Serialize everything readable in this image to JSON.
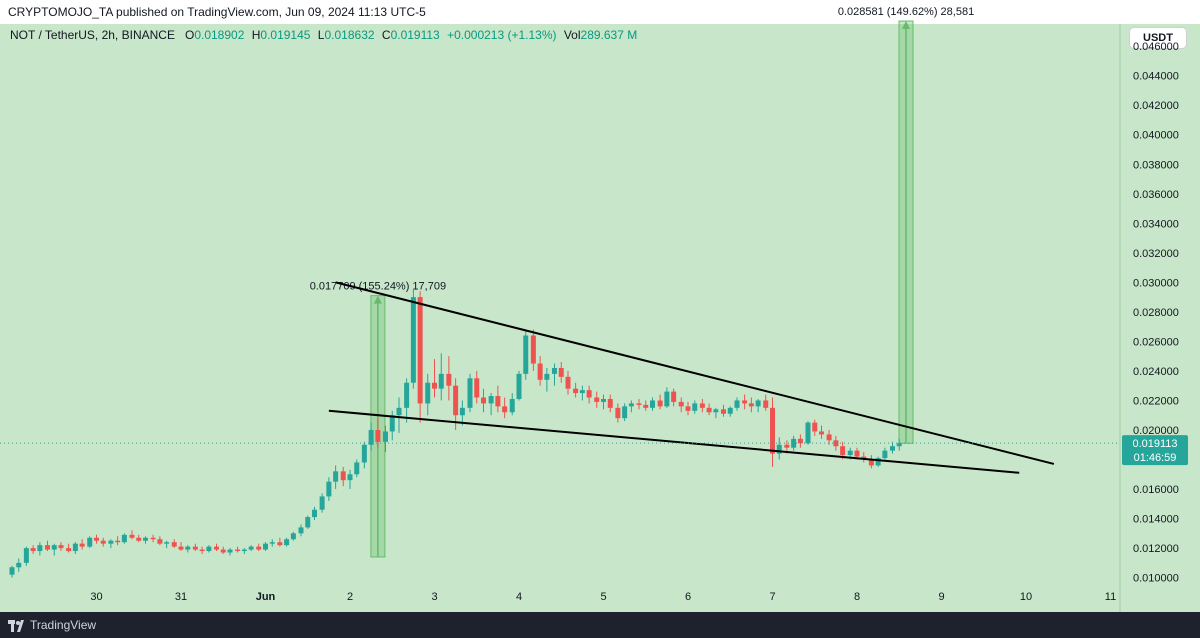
{
  "header": {
    "published": "CRYPTOMOJO_TA published on TradingView.com, Jun 09, 2024 11:13 UTC-5"
  },
  "legend": {
    "symbol": "NOT / TetherUS, 2h, BINANCE",
    "o_label": "O",
    "o": "0.018902",
    "h_label": "H",
    "h": "0.019145",
    "l_label": "L",
    "l": "0.018632",
    "c_label": "C",
    "c": "0.019113",
    "change": "+0.000213 (+1.13%)",
    "vol_label": "Vol",
    "vol": "289.637 M"
  },
  "currency_button": "USDT",
  "footer": {
    "brand": "TradingView"
  },
  "colors": {
    "background": "#c8e6c9",
    "up": "#26a69a",
    "down": "#ef5350",
    "measure": "#66bb6a",
    "trendline": "#000000",
    "last_price": "#26a69a"
  },
  "chart_data": {
    "type": "candlestick",
    "ylim": [
      0.0095,
      0.0475
    ],
    "y_ticks": [
      "0.046000",
      "0.044000",
      "0.042000",
      "0.040000",
      "0.038000",
      "0.036000",
      "0.034000",
      "0.032000",
      "0.030000",
      "0.028000",
      "0.026000",
      "0.024000",
      "0.022000",
      "0.020000",
      "0.018000",
      "0.016000",
      "0.014000",
      "0.012000",
      "0.010000"
    ],
    "x_ticks": [
      "30",
      "31",
      "Jun",
      "2",
      "3",
      "4",
      "5",
      "6",
      "7",
      "8",
      "9",
      "10",
      "11"
    ],
    "last_price": {
      "value": "0.019113",
      "countdown": "01:46:59"
    },
    "candles": [
      [
        29.0,
        0.0102,
        0.0108,
        0.01,
        0.0107
      ],
      [
        29.08,
        0.0107,
        0.0113,
        0.0104,
        0.011
      ],
      [
        29.17,
        0.011,
        0.0121,
        0.0108,
        0.012
      ],
      [
        29.25,
        0.012,
        0.0122,
        0.0116,
        0.0118
      ],
      [
        29.33,
        0.0118,
        0.0124,
        0.0115,
        0.0122
      ],
      [
        29.42,
        0.0122,
        0.0125,
        0.0118,
        0.0119
      ],
      [
        29.5,
        0.0119,
        0.0123,
        0.0115,
        0.0122
      ],
      [
        29.58,
        0.0122,
        0.0124,
        0.0118,
        0.012
      ],
      [
        29.67,
        0.012,
        0.0123,
        0.0117,
        0.0118
      ],
      [
        29.75,
        0.0118,
        0.0124,
        0.0116,
        0.0123
      ],
      [
        29.83,
        0.0123,
        0.0126,
        0.0119,
        0.0121
      ],
      [
        29.92,
        0.0121,
        0.0128,
        0.012,
        0.0127
      ],
      [
        30.0,
        0.0127,
        0.0129,
        0.0123,
        0.0125
      ],
      [
        30.08,
        0.0125,
        0.0127,
        0.0121,
        0.0123
      ],
      [
        30.17,
        0.0123,
        0.0126,
        0.012,
        0.0125
      ],
      [
        30.25,
        0.0125,
        0.0128,
        0.0122,
        0.0124
      ],
      [
        30.33,
        0.0124,
        0.013,
        0.0123,
        0.0129
      ],
      [
        30.42,
        0.0129,
        0.0132,
        0.0126,
        0.0127
      ],
      [
        30.5,
        0.0127,
        0.0129,
        0.0124,
        0.0125
      ],
      [
        30.58,
        0.0125,
        0.0128,
        0.0123,
        0.0127
      ],
      [
        30.67,
        0.0127,
        0.0129,
        0.0124,
        0.0126
      ],
      [
        30.75,
        0.0126,
        0.0128,
        0.0122,
        0.0123
      ],
      [
        30.83,
        0.0123,
        0.0125,
        0.012,
        0.0124
      ],
      [
        30.92,
        0.0124,
        0.0126,
        0.012,
        0.0121
      ],
      [
        31.0,
        0.0121,
        0.0124,
        0.0118,
        0.0119
      ],
      [
        31.08,
        0.0119,
        0.0122,
        0.0117,
        0.0121
      ],
      [
        31.17,
        0.0121,
        0.0123,
        0.0118,
        0.0119
      ],
      [
        31.25,
        0.0119,
        0.0121,
        0.0116,
        0.0118
      ],
      [
        31.33,
        0.0118,
        0.0122,
        0.0117,
        0.0121
      ],
      [
        31.42,
        0.0121,
        0.0123,
        0.0118,
        0.0119
      ],
      [
        31.5,
        0.0119,
        0.0121,
        0.0116,
        0.0117
      ],
      [
        31.58,
        0.0117,
        0.012,
        0.0115,
        0.0119
      ],
      [
        31.67,
        0.0119,
        0.0121,
        0.0117,
        0.0118
      ],
      [
        31.75,
        0.0118,
        0.012,
        0.0116,
        0.0119
      ],
      [
        31.83,
        0.0119,
        0.0122,
        0.0118,
        0.0121
      ],
      [
        31.92,
        0.0121,
        0.0123,
        0.0118,
        0.0119
      ],
      [
        32.0,
        0.0119,
        0.0124,
        0.0118,
        0.0123
      ],
      [
        32.08,
        0.0123,
        0.0126,
        0.0121,
        0.0124
      ],
      [
        32.17,
        0.0124,
        0.0127,
        0.0121,
        0.0122
      ],
      [
        32.25,
        0.0122,
        0.0127,
        0.0121,
        0.0126
      ],
      [
        32.33,
        0.0126,
        0.0131,
        0.0125,
        0.013
      ],
      [
        32.42,
        0.013,
        0.0136,
        0.0128,
        0.0134
      ],
      [
        32.5,
        0.0134,
        0.0142,
        0.0133,
        0.0141
      ],
      [
        32.58,
        0.0141,
        0.0148,
        0.0139,
        0.0146
      ],
      [
        32.67,
        0.0146,
        0.0157,
        0.0144,
        0.0155
      ],
      [
        32.75,
        0.0155,
        0.0168,
        0.0152,
        0.0165
      ],
      [
        32.83,
        0.0165,
        0.0176,
        0.016,
        0.0172
      ],
      [
        32.92,
        0.0172,
        0.0175,
        0.0162,
        0.0166
      ],
      [
        33.0,
        0.0166,
        0.0173,
        0.016,
        0.017
      ],
      [
        33.08,
        0.017,
        0.018,
        0.0168,
        0.0178
      ],
      [
        33.17,
        0.0178,
        0.0192,
        0.0174,
        0.019
      ],
      [
        33.25,
        0.019,
        0.0205,
        0.0186,
        0.02
      ],
      [
        33.33,
        0.02,
        0.0208,
        0.0188,
        0.0192
      ],
      [
        33.42,
        0.0192,
        0.0203,
        0.0185,
        0.0199
      ],
      [
        33.5,
        0.0199,
        0.0213,
        0.0193,
        0.021
      ],
      [
        33.58,
        0.021,
        0.0222,
        0.0198,
        0.0215
      ],
      [
        33.67,
        0.0215,
        0.0235,
        0.0205,
        0.0232
      ],
      [
        33.75,
        0.0232,
        0.0295,
        0.0228,
        0.029
      ],
      [
        33.83,
        0.029,
        0.0294,
        0.0205,
        0.0218
      ],
      [
        33.92,
        0.0218,
        0.0238,
        0.021,
        0.0232
      ],
      [
        34.0,
        0.0232,
        0.0248,
        0.0222,
        0.0228
      ],
      [
        34.08,
        0.0228,
        0.0252,
        0.022,
        0.0238
      ],
      [
        34.17,
        0.0238,
        0.025,
        0.022,
        0.023
      ],
      [
        34.25,
        0.023,
        0.0235,
        0.02,
        0.021
      ],
      [
        34.33,
        0.021,
        0.022,
        0.0203,
        0.0215
      ],
      [
        34.42,
        0.0215,
        0.0238,
        0.0212,
        0.0235
      ],
      [
        34.5,
        0.0235,
        0.024,
        0.0218,
        0.0222
      ],
      [
        34.58,
        0.0222,
        0.0228,
        0.0212,
        0.0218
      ],
      [
        34.67,
        0.0218,
        0.0225,
        0.021,
        0.0223
      ],
      [
        34.75,
        0.0223,
        0.023,
        0.0212,
        0.0216
      ],
      [
        34.83,
        0.0216,
        0.0222,
        0.0208,
        0.0212
      ],
      [
        34.92,
        0.0212,
        0.0225,
        0.021,
        0.0221
      ],
      [
        35.0,
        0.0221,
        0.024,
        0.022,
        0.0238
      ],
      [
        35.08,
        0.0238,
        0.0268,
        0.0234,
        0.0264
      ],
      [
        35.17,
        0.0264,
        0.0268,
        0.024,
        0.0245
      ],
      [
        35.25,
        0.0245,
        0.025,
        0.023,
        0.0234
      ],
      [
        35.33,
        0.0234,
        0.0242,
        0.0226,
        0.0238
      ],
      [
        35.42,
        0.0238,
        0.0245,
        0.023,
        0.0242
      ],
      [
        35.5,
        0.0242,
        0.0246,
        0.0232,
        0.0236
      ],
      [
        35.58,
        0.0236,
        0.024,
        0.0224,
        0.0228
      ],
      [
        35.67,
        0.0228,
        0.0232,
        0.0222,
        0.0225
      ],
      [
        35.75,
        0.0225,
        0.023,
        0.022,
        0.0227
      ],
      [
        35.83,
        0.0227,
        0.023,
        0.0218,
        0.0222
      ],
      [
        35.92,
        0.0222,
        0.0226,
        0.0215,
        0.0219
      ],
      [
        36.0,
        0.0219,
        0.0224,
        0.0214,
        0.0221
      ],
      [
        36.08,
        0.0221,
        0.0224,
        0.0212,
        0.0215
      ],
      [
        36.17,
        0.0215,
        0.0218,
        0.0205,
        0.0208
      ],
      [
        36.25,
        0.0208,
        0.0218,
        0.0206,
        0.0216
      ],
      [
        36.33,
        0.0216,
        0.022,
        0.0212,
        0.0218
      ],
      [
        36.42,
        0.0218,
        0.0221,
        0.0214,
        0.0217
      ],
      [
        36.5,
        0.0217,
        0.022,
        0.0213,
        0.0215
      ],
      [
        36.58,
        0.0215,
        0.0222,
        0.0213,
        0.022
      ],
      [
        36.67,
        0.022,
        0.0224,
        0.0214,
        0.0216
      ],
      [
        36.75,
        0.0216,
        0.0229,
        0.0215,
        0.0226
      ],
      [
        36.83,
        0.0226,
        0.0228,
        0.0216,
        0.0219
      ],
      [
        36.92,
        0.0219,
        0.0222,
        0.0212,
        0.0216
      ],
      [
        37.0,
        0.0216,
        0.0219,
        0.021,
        0.0213
      ],
      [
        37.08,
        0.0213,
        0.022,
        0.0211,
        0.0218
      ],
      [
        37.17,
        0.0218,
        0.0221,
        0.0212,
        0.0215
      ],
      [
        37.25,
        0.0215,
        0.0218,
        0.021,
        0.0212
      ],
      [
        37.33,
        0.0212,
        0.0215,
        0.0208,
        0.0214
      ],
      [
        37.42,
        0.0214,
        0.0217,
        0.0209,
        0.0211
      ],
      [
        37.5,
        0.0211,
        0.0216,
        0.0209,
        0.0215
      ],
      [
        37.58,
        0.0215,
        0.0222,
        0.0213,
        0.022
      ],
      [
        37.67,
        0.022,
        0.0224,
        0.0214,
        0.0218
      ],
      [
        37.75,
        0.0218,
        0.0222,
        0.0212,
        0.0216
      ],
      [
        37.83,
        0.0216,
        0.0221,
        0.0212,
        0.022
      ],
      [
        37.92,
        0.022,
        0.0224,
        0.0213,
        0.0215
      ],
      [
        38.0,
        0.0215,
        0.0222,
        0.0175,
        0.0184
      ],
      [
        38.08,
        0.0184,
        0.0195,
        0.018,
        0.019
      ],
      [
        38.17,
        0.019,
        0.0193,
        0.0184,
        0.0188
      ],
      [
        38.25,
        0.0188,
        0.0196,
        0.0186,
        0.0194
      ],
      [
        38.33,
        0.0194,
        0.0197,
        0.0188,
        0.0191
      ],
      [
        38.42,
        0.0191,
        0.0206,
        0.019,
        0.0205
      ],
      [
        38.5,
        0.0205,
        0.0207,
        0.0196,
        0.0199
      ],
      [
        38.58,
        0.0199,
        0.0203,
        0.0194,
        0.0197
      ],
      [
        38.67,
        0.0197,
        0.02,
        0.019,
        0.0193
      ],
      [
        38.75,
        0.0193,
        0.0196,
        0.0186,
        0.0189
      ],
      [
        38.83,
        0.0189,
        0.0192,
        0.018,
        0.0183
      ],
      [
        38.92,
        0.0183,
        0.0188,
        0.018,
        0.0186
      ],
      [
        39.0,
        0.0186,
        0.0188,
        0.018,
        0.0182
      ],
      [
        39.08,
        0.0182,
        0.0185,
        0.0178,
        0.018
      ],
      [
        39.17,
        0.018,
        0.0183,
        0.0174,
        0.0176
      ],
      [
        39.25,
        0.0176,
        0.0182,
        0.0175,
        0.0181
      ],
      [
        39.33,
        0.0181,
        0.0188,
        0.018,
        0.0186
      ],
      [
        39.42,
        0.0186,
        0.0192,
        0.0184,
        0.0189
      ],
      [
        39.5,
        0.0189,
        0.0194,
        0.0186,
        0.0191
      ]
    ],
    "trendlines": [
      {
        "name": "upper",
        "points": [
          [
            32.83,
            0.03
          ],
          [
            41.33,
            0.0177
          ]
        ]
      },
      {
        "name": "lower",
        "points": [
          [
            32.75,
            0.0213
          ],
          [
            40.92,
            0.0171
          ]
        ]
      }
    ],
    "measurements": [
      {
        "label": "0.017709 (155.24%) 17,709",
        "x": 33.33,
        "from": 0.0114,
        "to": 0.0291
      },
      {
        "label": "0.028581 (149.62%) 28,581",
        "x": 39.58,
        "from": 0.0191,
        "to": 0.0477
      }
    ]
  }
}
